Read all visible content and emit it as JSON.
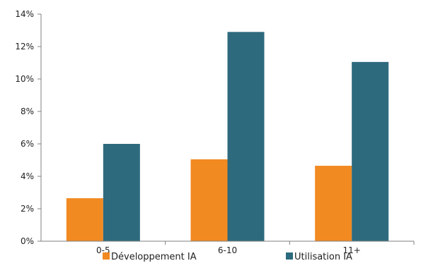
{
  "chart_data": {
    "type": "bar",
    "categories": [
      "0-5",
      "6-10",
      "11+"
    ],
    "series": [
      {
        "name": "Développement IA",
        "color": "#F28A22",
        "values": [
          2.65,
          5.05,
          4.65
        ]
      },
      {
        "name": "Utilisation IA",
        "color": "#2D6A7E",
        "values": [
          6.0,
          12.9,
          11.05
        ]
      }
    ],
    "ylim": [
      0,
      14
    ],
    "yticks": [
      "0%",
      "2%",
      "4%",
      "6%",
      "8%",
      "10%",
      "12%",
      "14%"
    ],
    "ytick_values": [
      0,
      2,
      4,
      6,
      8,
      10,
      12,
      14
    ],
    "grid": false,
    "legend_position": "bottom"
  }
}
